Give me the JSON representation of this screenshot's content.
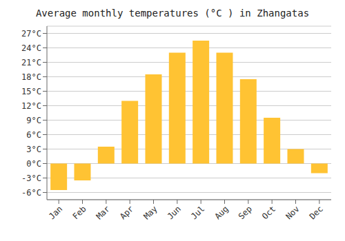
{
  "chart_data": {
    "type": "bar",
    "title": "Average monthly temperatures (°C ) in Zhangatas",
    "categories": [
      "Jan",
      "Feb",
      "Mar",
      "Apr",
      "May",
      "Jun",
      "Jul",
      "Aug",
      "Sep",
      "Oct",
      "Nov",
      "Dec"
    ],
    "values": [
      -5.5,
      -3.5,
      3.5,
      13.0,
      18.5,
      23.0,
      25.5,
      23.0,
      17.5,
      9.5,
      3.0,
      -2.0
    ],
    "color": "#FFC333",
    "ylim": [
      -7.5,
      28.5
    ],
    "yticks": [
      {
        "value": -6,
        "label": "-6°C"
      },
      {
        "value": -3,
        "label": "-3°C"
      },
      {
        "value": 0,
        "label": "0°C"
      },
      {
        "value": 3,
        "label": "3°C"
      },
      {
        "value": 6,
        "label": "6°C"
      },
      {
        "value": 9,
        "label": "9°C"
      },
      {
        "value": 12,
        "label": "12°C"
      },
      {
        "value": 15,
        "label": "15°C"
      },
      {
        "value": 18,
        "label": "18°C"
      },
      {
        "value": 21,
        "label": "21°C"
      },
      {
        "value": 24,
        "label": "24°C"
      },
      {
        "value": 27,
        "label": "27°C"
      }
    ],
    "grid": true
  }
}
